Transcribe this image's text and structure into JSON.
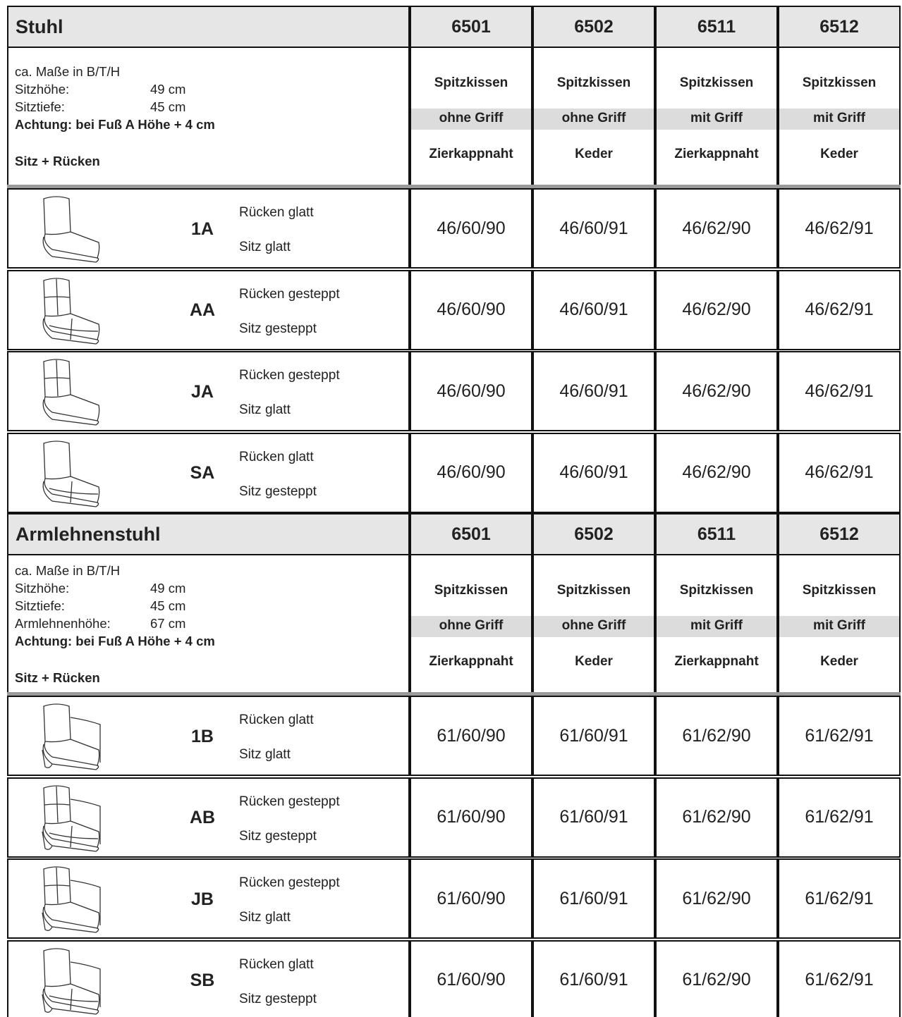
{
  "sections": [
    {
      "title": "Stuhl",
      "columns": [
        "6501",
        "6502",
        "6511",
        "6512"
      ],
      "measures_title": "ca. Maße in B/T/H",
      "measures": [
        {
          "label": "Sitzhöhe:",
          "value": "49 cm"
        },
        {
          "label": "Sitztiefe:",
          "value": "45 cm"
        }
      ],
      "note": "Achtung: bei Fuß A Höhe + 4 cm",
      "subtitle": "Sitz + Rücken",
      "specs": [
        [
          "Spitzkissen",
          "ohne Griff",
          "Zierkappnaht"
        ],
        [
          "Spitzkissen",
          "ohne Griff",
          "Keder"
        ],
        [
          "Spitzkissen",
          "mit Griff",
          "Zierkappnaht"
        ],
        [
          "Spitzkissen",
          "mit Griff",
          "Keder"
        ]
      ],
      "rows": [
        {
          "code": "1A",
          "back": "Rücken glatt",
          "seat": "Sitz glatt",
          "values": [
            "46/60/90",
            "46/60/91",
            "46/62/90",
            "46/62/91"
          ]
        },
        {
          "code": "AA",
          "back": "Rücken gesteppt",
          "seat": "Sitz gesteppt",
          "values": [
            "46/60/90",
            "46/60/91",
            "46/62/90",
            "46/62/91"
          ]
        },
        {
          "code": "JA",
          "back": "Rücken gesteppt",
          "seat": "Sitz glatt",
          "values": [
            "46/60/90",
            "46/60/91",
            "46/62/90",
            "46/62/91"
          ]
        },
        {
          "code": "SA",
          "back": "Rücken glatt",
          "seat": "Sitz gesteppt",
          "values": [
            "46/60/90",
            "46/60/91",
            "46/62/90",
            "46/62/91"
          ]
        }
      ]
    },
    {
      "title": "Armlehnenstuhl",
      "columns": [
        "6501",
        "6502",
        "6511",
        "6512"
      ],
      "measures_title": "ca. Maße in B/T/H",
      "measures": [
        {
          "label": "Sitzhöhe:",
          "value": "49 cm"
        },
        {
          "label": "Sitztiefe:",
          "value": "45 cm"
        },
        {
          "label": "Armlehnenhöhe:",
          "value": "67 cm"
        }
      ],
      "note": "Achtung: bei Fuß A Höhe + 4 cm",
      "subtitle": "Sitz + Rücken",
      "specs": [
        [
          "Spitzkissen",
          "ohne Griff",
          "Zierkappnaht"
        ],
        [
          "Spitzkissen",
          "ohne Griff",
          "Keder"
        ],
        [
          "Spitzkissen",
          "mit Griff",
          "Zierkappnaht"
        ],
        [
          "Spitzkissen",
          "mit Griff",
          "Keder"
        ]
      ],
      "rows": [
        {
          "code": "1B",
          "back": "Rücken glatt",
          "seat": "Sitz glatt",
          "values": [
            "61/60/90",
            "61/60/91",
            "61/62/90",
            "61/62/91"
          ]
        },
        {
          "code": "AB",
          "back": "Rücken gesteppt",
          "seat": "Sitz gesteppt",
          "values": [
            "61/60/90",
            "61/60/91",
            "61/62/90",
            "61/62/91"
          ]
        },
        {
          "code": "JB",
          "back": "Rücken gesteppt",
          "seat": "Sitz glatt",
          "values": [
            "61/60/90",
            "61/60/91",
            "61/62/90",
            "61/62/91"
          ]
        },
        {
          "code": "SB",
          "back": "Rücken glatt",
          "seat": "Sitz gesteppt",
          "values": [
            "61/60/90",
            "61/60/91",
            "61/62/90",
            "61/62/91"
          ]
        }
      ]
    }
  ]
}
